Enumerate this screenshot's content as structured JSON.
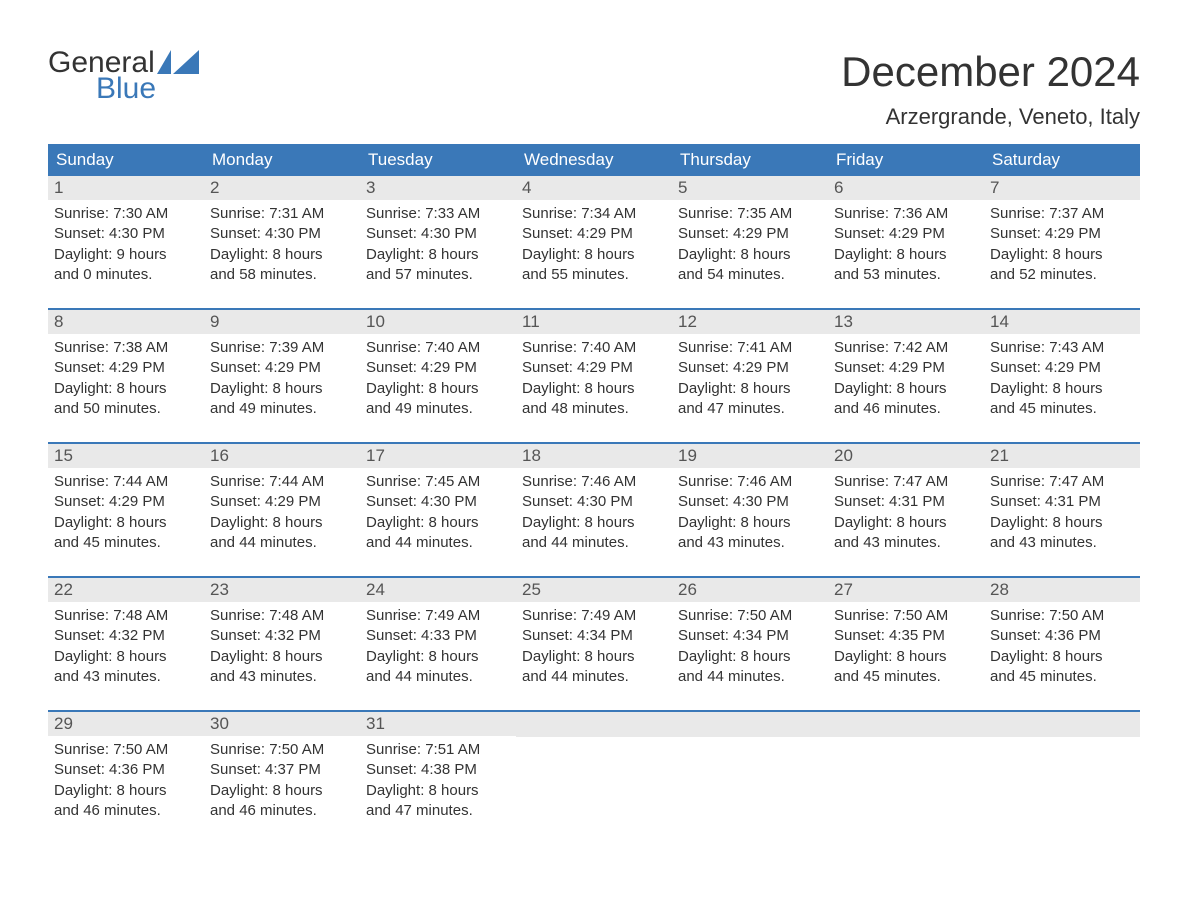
{
  "brand": {
    "word1": "General",
    "word2": "Blue",
    "accent_color": "#3a78b8",
    "text_color": "#333333"
  },
  "title": "December 2024",
  "location": "Arzergrande, Veneto, Italy",
  "colors": {
    "header_bg": "#3a78b8",
    "header_text": "#ffffff",
    "band_bg": "#e9e9e9",
    "week_border": "#3a78b8",
    "body_text": "#333333",
    "background": "#ffffff"
  },
  "weekdays": [
    "Sunday",
    "Monday",
    "Tuesday",
    "Wednesday",
    "Thursday",
    "Friday",
    "Saturday"
  ],
  "weeks": [
    [
      {
        "n": "1",
        "sunrise": "7:30 AM",
        "sunset": "4:30 PM",
        "dl1": "Daylight: 9 hours",
        "dl2": "and 0 minutes."
      },
      {
        "n": "2",
        "sunrise": "7:31 AM",
        "sunset": "4:30 PM",
        "dl1": "Daylight: 8 hours",
        "dl2": "and 58 minutes."
      },
      {
        "n": "3",
        "sunrise": "7:33 AM",
        "sunset": "4:30 PM",
        "dl1": "Daylight: 8 hours",
        "dl2": "and 57 minutes."
      },
      {
        "n": "4",
        "sunrise": "7:34 AM",
        "sunset": "4:29 PM",
        "dl1": "Daylight: 8 hours",
        "dl2": "and 55 minutes."
      },
      {
        "n": "5",
        "sunrise": "7:35 AM",
        "sunset": "4:29 PM",
        "dl1": "Daylight: 8 hours",
        "dl2": "and 54 minutes."
      },
      {
        "n": "6",
        "sunrise": "7:36 AM",
        "sunset": "4:29 PM",
        "dl1": "Daylight: 8 hours",
        "dl2": "and 53 minutes."
      },
      {
        "n": "7",
        "sunrise": "7:37 AM",
        "sunset": "4:29 PM",
        "dl1": "Daylight: 8 hours",
        "dl2": "and 52 minutes."
      }
    ],
    [
      {
        "n": "8",
        "sunrise": "7:38 AM",
        "sunset": "4:29 PM",
        "dl1": "Daylight: 8 hours",
        "dl2": "and 50 minutes."
      },
      {
        "n": "9",
        "sunrise": "7:39 AM",
        "sunset": "4:29 PM",
        "dl1": "Daylight: 8 hours",
        "dl2": "and 49 minutes."
      },
      {
        "n": "10",
        "sunrise": "7:40 AM",
        "sunset": "4:29 PM",
        "dl1": "Daylight: 8 hours",
        "dl2": "and 49 minutes."
      },
      {
        "n": "11",
        "sunrise": "7:40 AM",
        "sunset": "4:29 PM",
        "dl1": "Daylight: 8 hours",
        "dl2": "and 48 minutes."
      },
      {
        "n": "12",
        "sunrise": "7:41 AM",
        "sunset": "4:29 PM",
        "dl1": "Daylight: 8 hours",
        "dl2": "and 47 minutes."
      },
      {
        "n": "13",
        "sunrise": "7:42 AM",
        "sunset": "4:29 PM",
        "dl1": "Daylight: 8 hours",
        "dl2": "and 46 minutes."
      },
      {
        "n": "14",
        "sunrise": "7:43 AM",
        "sunset": "4:29 PM",
        "dl1": "Daylight: 8 hours",
        "dl2": "and 45 minutes."
      }
    ],
    [
      {
        "n": "15",
        "sunrise": "7:44 AM",
        "sunset": "4:29 PM",
        "dl1": "Daylight: 8 hours",
        "dl2": "and 45 minutes."
      },
      {
        "n": "16",
        "sunrise": "7:44 AM",
        "sunset": "4:29 PM",
        "dl1": "Daylight: 8 hours",
        "dl2": "and 44 minutes."
      },
      {
        "n": "17",
        "sunrise": "7:45 AM",
        "sunset": "4:30 PM",
        "dl1": "Daylight: 8 hours",
        "dl2": "and 44 minutes."
      },
      {
        "n": "18",
        "sunrise": "7:46 AM",
        "sunset": "4:30 PM",
        "dl1": "Daylight: 8 hours",
        "dl2": "and 44 minutes."
      },
      {
        "n": "19",
        "sunrise": "7:46 AM",
        "sunset": "4:30 PM",
        "dl1": "Daylight: 8 hours",
        "dl2": "and 43 minutes."
      },
      {
        "n": "20",
        "sunrise": "7:47 AM",
        "sunset": "4:31 PM",
        "dl1": "Daylight: 8 hours",
        "dl2": "and 43 minutes."
      },
      {
        "n": "21",
        "sunrise": "7:47 AM",
        "sunset": "4:31 PM",
        "dl1": "Daylight: 8 hours",
        "dl2": "and 43 minutes."
      }
    ],
    [
      {
        "n": "22",
        "sunrise": "7:48 AM",
        "sunset": "4:32 PM",
        "dl1": "Daylight: 8 hours",
        "dl2": "and 43 minutes."
      },
      {
        "n": "23",
        "sunrise": "7:48 AM",
        "sunset": "4:32 PM",
        "dl1": "Daylight: 8 hours",
        "dl2": "and 43 minutes."
      },
      {
        "n": "24",
        "sunrise": "7:49 AM",
        "sunset": "4:33 PM",
        "dl1": "Daylight: 8 hours",
        "dl2": "and 44 minutes."
      },
      {
        "n": "25",
        "sunrise": "7:49 AM",
        "sunset": "4:34 PM",
        "dl1": "Daylight: 8 hours",
        "dl2": "and 44 minutes."
      },
      {
        "n": "26",
        "sunrise": "7:50 AM",
        "sunset": "4:34 PM",
        "dl1": "Daylight: 8 hours",
        "dl2": "and 44 minutes."
      },
      {
        "n": "27",
        "sunrise": "7:50 AM",
        "sunset": "4:35 PM",
        "dl1": "Daylight: 8 hours",
        "dl2": "and 45 minutes."
      },
      {
        "n": "28",
        "sunrise": "7:50 AM",
        "sunset": "4:36 PM",
        "dl1": "Daylight: 8 hours",
        "dl2": "and 45 minutes."
      }
    ],
    [
      {
        "n": "29",
        "sunrise": "7:50 AM",
        "sunset": "4:36 PM",
        "dl1": "Daylight: 8 hours",
        "dl2": "and 46 minutes."
      },
      {
        "n": "30",
        "sunrise": "7:50 AM",
        "sunset": "4:37 PM",
        "dl1": "Daylight: 8 hours",
        "dl2": "and 46 minutes."
      },
      {
        "n": "31",
        "sunrise": "7:51 AM",
        "sunset": "4:38 PM",
        "dl1": "Daylight: 8 hours",
        "dl2": "and 47 minutes."
      },
      null,
      null,
      null,
      null
    ]
  ],
  "labels": {
    "sunrise": "Sunrise:",
    "sunset": "Sunset:"
  }
}
